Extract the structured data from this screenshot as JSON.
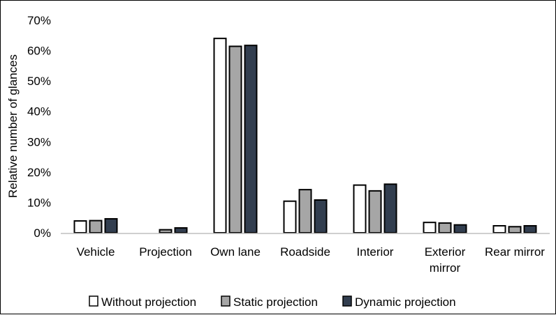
{
  "chart_data": {
    "type": "bar",
    "title": "",
    "xlabel": "",
    "ylabel": "Relative number of glances",
    "ylim": [
      0,
      70
    ],
    "y_ticks": [
      "0%",
      "10%",
      "20%",
      "30%",
      "40%",
      "50%",
      "60%",
      "70%"
    ],
    "grid": false,
    "legend_position": "bottom",
    "categories": [
      [
        "Vehicle"
      ],
      [
        "Projection"
      ],
      [
        "Own lane"
      ],
      [
        "Roadside"
      ],
      [
        "Interior"
      ],
      [
        "Exterior",
        "mirror"
      ],
      [
        "Rear mirror"
      ]
    ],
    "series": [
      {
        "name": "Without projection",
        "color": "#ffffff",
        "values": [
          3.9,
          0,
          64.0,
          10.4,
          15.7,
          3.4,
          2.3
        ]
      },
      {
        "name": "Static projection",
        "color": "#a6a6a6",
        "values": [
          4.0,
          1.0,
          61.4,
          14.2,
          13.8,
          3.2,
          2.0
        ]
      },
      {
        "name": "Dynamic projection",
        "color": "#323e4f",
        "values": [
          4.6,
          1.6,
          61.7,
          10.8,
          16.0,
          2.6,
          2.3
        ]
      }
    ]
  }
}
